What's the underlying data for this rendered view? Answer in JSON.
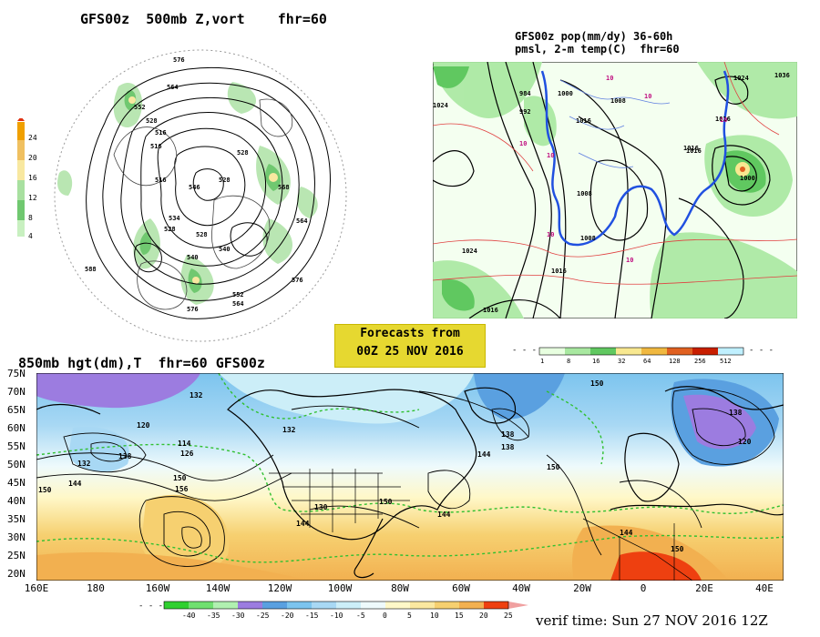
{
  "top_left": {
    "title": "GFS00z  500mb Z,vort    fhr=60",
    "colorbar_ticks": [
      "24",
      "20",
      "16",
      "12",
      "8",
      "4"
    ],
    "colorbar_colors": [
      "#f0a000",
      "#f0c060",
      "#f8e8a0",
      "#a8e0a0",
      "#70c870",
      "#c8f0c0"
    ],
    "contour_labels": [
      "576",
      "564",
      "552",
      "528",
      "516",
      "546",
      "516",
      "528",
      "534",
      "540",
      "528",
      "540",
      "552",
      "564",
      "576",
      "568",
      "564",
      "576",
      "528",
      "516",
      "528",
      "588"
    ]
  },
  "top_right": {
    "title_line1": "GFS00z pop(mm/dy) 36-60h",
    "title_line2": "pmsl, 2-m temp(C)  fhr=60",
    "isobar_labels": [
      "984",
      "992",
      "1024",
      "1000",
      "1008",
      "1016",
      "1024",
      "1008",
      "1016",
      "1000",
      "1036",
      "1008",
      "1016",
      "1024",
      "1016",
      "1016",
      "1016"
    ],
    "temp_labels": [
      "10",
      "10",
      "10",
      "10",
      "10",
      "10",
      "10"
    ]
  },
  "forecast_box": {
    "line1": "Forecasts from",
    "line2": "00Z 25 NOV 2016"
  },
  "precip_colorbar": {
    "ticks": [
      "1",
      "8",
      "16",
      "32",
      "64",
      "128",
      "256",
      "512"
    ],
    "colors": [
      "#e8ffe0",
      "#a8e8a0",
      "#60c860",
      "#f8e890",
      "#f0b840",
      "#e06020",
      "#c81e00",
      "#c0f0ff"
    ]
  },
  "bottom": {
    "title": "850mb hgt(dm),T  fhr=60 GFS00z",
    "lat_labels": [
      "75N",
      "70N",
      "65N",
      "60N",
      "55N",
      "50N",
      "45N",
      "40N",
      "35N",
      "30N",
      "25N",
      "20N"
    ],
    "lon_labels": [
      "160E",
      "180",
      "160W",
      "140W",
      "120W",
      "100W",
      "80W",
      "60W",
      "40W",
      "20W",
      "0",
      "20E",
      "40E"
    ],
    "contour_labels": [
      "132",
      "120",
      "132",
      "138",
      "114",
      "126",
      "132",
      "150",
      "156",
      "144",
      "150",
      "138",
      "130",
      "150",
      "144",
      "144",
      "138",
      "144",
      "150",
      "120",
      "138",
      "144",
      "150",
      "150"
    ]
  },
  "temp_colorbar": {
    "ticks": [
      "-40",
      "-35",
      "-30",
      "-25",
      "-20",
      "-15",
      "-10",
      "-5",
      "0",
      "5",
      "10",
      "15",
      "20",
      "25"
    ],
    "colors": [
      "#30d030",
      "#70e070",
      "#b0f0b0",
      "#9c7ce0",
      "#5aa0e0",
      "#7cc4ee",
      "#a8d8f4",
      "#cceef8",
      "#eefafc",
      "#fff8c8",
      "#fbe8a0",
      "#f6d070",
      "#f2b050",
      "#ee4010",
      "#f0a0a0"
    ]
  },
  "verif_time": "verif time: Sun 27 NOV 2016 12Z"
}
